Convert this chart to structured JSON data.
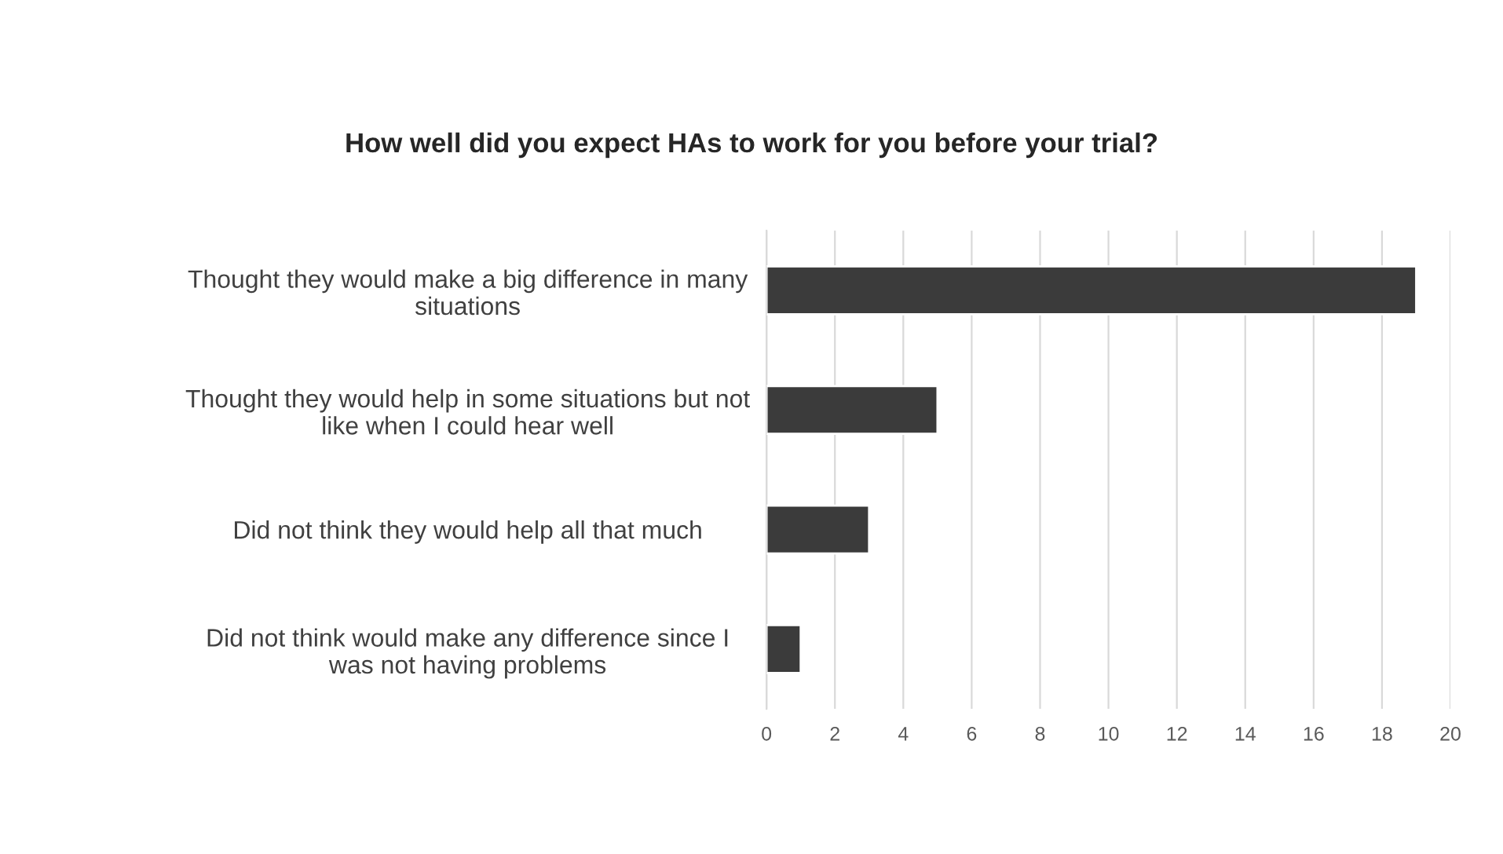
{
  "chart_data": {
    "type": "bar",
    "orientation": "horizontal",
    "title": "How well did you expect HAs to work for you before your trial?",
    "categories": [
      "Thought they would make a big difference in many\nsituations",
      "Thought they would help in some situations but not\nlike when I could hear well",
      "Did not think they would help all that much",
      "Did not think would make any difference since I\nwas not having problems"
    ],
    "values": [
      19,
      5,
      3,
      1
    ],
    "color": "#3b3b3b",
    "xlim": [
      0,
      20
    ],
    "xticks": [
      0,
      2,
      4,
      6,
      8,
      10,
      12,
      14,
      16,
      18,
      20
    ],
    "grid": "x",
    "legend": false
  }
}
